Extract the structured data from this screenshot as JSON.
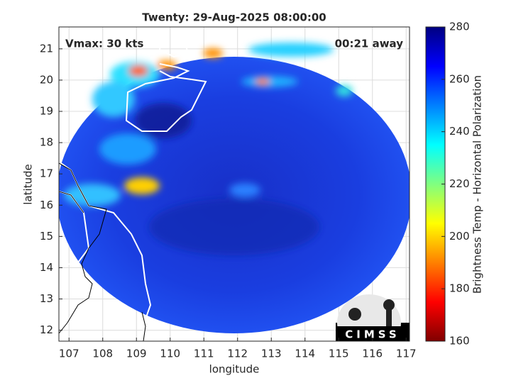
{
  "chart_data": {
    "type": "map",
    "title": "Twenty: 29-Aug-2025 08:00:00",
    "annotations": [
      "Vmax: 30 kts",
      "00:21 away"
    ],
    "xlabel": "longitude",
    "ylabel": "latitude",
    "xlim": [
      106.7,
      117.1
    ],
    "xticks": [
      107,
      108,
      109,
      110,
      111,
      112,
      113,
      114,
      115,
      116,
      117
    ],
    "ylim": [
      11.65,
      21.7
    ],
    "yticks": [
      12,
      13,
      14,
      15,
      16,
      17,
      18,
      19,
      20,
      21
    ],
    "grid": true,
    "colorbar": {
      "label": "Brightness Temp - Horizontal Polarization",
      "lim": [
        160,
        280
      ],
      "ticks": [
        160,
        180,
        200,
        220,
        240,
        260,
        280
      ],
      "colormap": "jet"
    },
    "logo": "CIMSS"
  }
}
